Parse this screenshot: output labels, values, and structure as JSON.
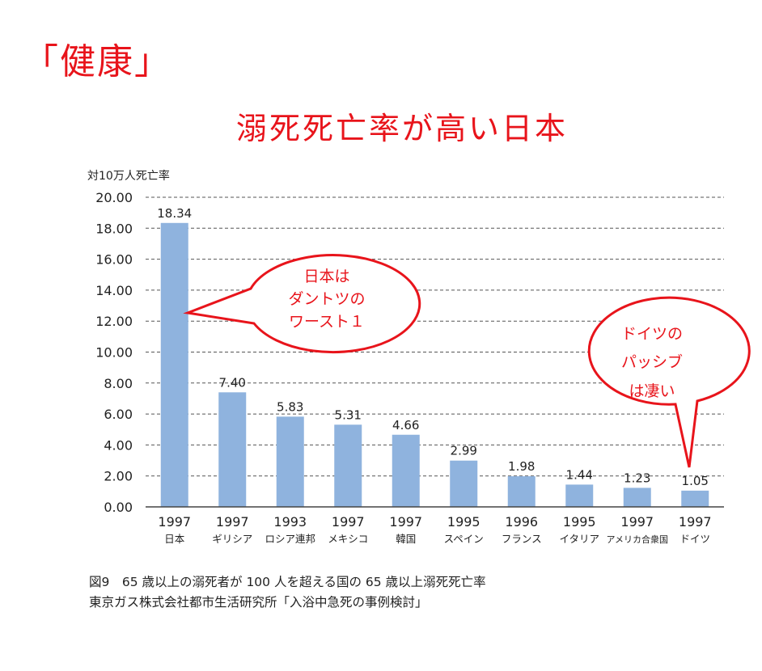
{
  "page_label": "「健康」",
  "headline": "溺死死亡率が高い日本",
  "caption": {
    "line1": "図9　65 歳以上の溺死者が 100 人を超える国の 65 歳以上溺死死亡率",
    "line2": "東京ガス株式会社都市生活研究所「入浴中急死の事例検討」"
  },
  "callouts": {
    "japan": [
      "日本は",
      "ダントツの",
      "ワースト１"
    ],
    "germany": [
      "ドイツの",
      "パッシブ",
      "は凄い"
    ]
  },
  "colors": {
    "bar": "#8fb3de",
    "accent": "#e8141b",
    "callout_fill": "#ffffff"
  },
  "chart_data": {
    "type": "bar",
    "ylabel": "対10万人死亡率",
    "ylim": [
      0,
      20
    ],
    "yticks": [
      "20.00",
      "18.00",
      "16.00",
      "14.00",
      "12.00",
      "10.00",
      "8.00",
      "6.00",
      "4.00",
      "2.00",
      "0.00"
    ],
    "grid": "dashed horizontal",
    "categories": [
      {
        "year": "1997",
        "country": "日本"
      },
      {
        "year": "1997",
        "country": "ギリシア"
      },
      {
        "year": "1993",
        "country": "ロシア連邦"
      },
      {
        "year": "1997",
        "country": "メキシコ"
      },
      {
        "year": "1997",
        "country": "韓国"
      },
      {
        "year": "1995",
        "country": "スペイン"
      },
      {
        "year": "1996",
        "country": "フランス"
      },
      {
        "year": "1995",
        "country": "イタリア"
      },
      {
        "year": "1997",
        "country": "アメリカ合衆国"
      },
      {
        "year": "1997",
        "country": "ドイツ"
      }
    ],
    "values": [
      18.34,
      7.4,
      5.83,
      5.31,
      4.66,
      2.99,
      1.98,
      1.44,
      1.23,
      1.05
    ],
    "value_labels": [
      "18.34",
      "7.40",
      "5.83",
      "5.31",
      "4.66",
      "2.99",
      "1.98",
      "1.44",
      "1.23",
      "1.05"
    ]
  }
}
